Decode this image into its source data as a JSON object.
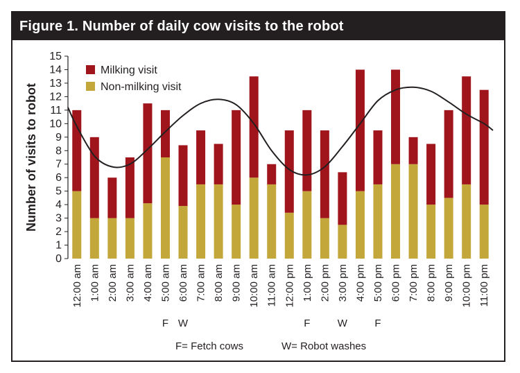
{
  "chart_data": {
    "type": "bar",
    "stacked": true,
    "title": "Figure 1. Number of daily cow visits to the robot",
    "ylabel": "Number of visits to robot",
    "ylim": [
      0,
      15
    ],
    "yticks": [
      0,
      1,
      2,
      3,
      4,
      5,
      6,
      7,
      8,
      9,
      10,
      11,
      12,
      13,
      14,
      15
    ],
    "grid": false,
    "legend_position": "top-left",
    "categories": [
      "12:00 am",
      "1:00 am",
      "2:00 am",
      "3:00 am",
      "4:00 am",
      "5:00 am",
      "6:00 am",
      "7:00 am",
      "8:00 am",
      "9:00 am",
      "10:00 am",
      "11:00 am",
      "12:00 pm",
      "1:00 pm",
      "2:00 pm",
      "3:00 pm",
      "4:00 pm",
      "5:00 pm",
      "6:00 pm",
      "7:00 pm",
      "8:00 pm",
      "9:00 pm",
      "10:00 pm",
      "11:00 pm"
    ],
    "series": [
      {
        "name": "Non-milking visit",
        "color": "#c4a73a",
        "values": [
          5,
          3,
          3,
          3,
          4.1,
          7.5,
          3.9,
          5.5,
          5.5,
          4,
          6,
          5.5,
          3.4,
          5,
          3,
          2.5,
          5,
          5.5,
          7,
          7,
          4,
          4.5,
          5.5,
          4
        ]
      },
      {
        "name": "Milking visit",
        "color": "#a0151c",
        "values": [
          6,
          6,
          3,
          4.5,
          7.4,
          3.5,
          4.5,
          4,
          3,
          7,
          7.5,
          1.5,
          6.1,
          6,
          6.5,
          3.9,
          9,
          4,
          7,
          2,
          4.5,
          6.5,
          8,
          8.5
        ]
      }
    ],
    "trend_line": {
      "color": "#231f20",
      "points": [
        [
          -0.5,
          11.2
        ],
        [
          0,
          9.8
        ],
        [
          1,
          7.6
        ],
        [
          2,
          6.8
        ],
        [
          3,
          7.0
        ],
        [
          4,
          8.1
        ],
        [
          5,
          9.4
        ],
        [
          6,
          10.6
        ],
        [
          7,
          11.5
        ],
        [
          8,
          11.8
        ],
        [
          9,
          11.4
        ],
        [
          10,
          10.0
        ],
        [
          11,
          8.0
        ],
        [
          12,
          6.6
        ],
        [
          13,
          6.2
        ],
        [
          14,
          6.8
        ],
        [
          15,
          8.3
        ],
        [
          16,
          10.0
        ],
        [
          17,
          11.7
        ],
        [
          18,
          12.5
        ],
        [
          19,
          12.7
        ],
        [
          20,
          12.4
        ],
        [
          21,
          11.6
        ],
        [
          22,
          10.7
        ],
        [
          23,
          10.0
        ],
        [
          23.5,
          9.5
        ]
      ]
    },
    "event_markers": [
      {
        "category": "5:00 am",
        "label": "F"
      },
      {
        "category": "6:00 am",
        "label": "W"
      },
      {
        "category": "1:00 pm",
        "label": "F"
      },
      {
        "category": "3:00 pm",
        "label": "W"
      },
      {
        "category": "5:00 pm",
        "label": "F"
      }
    ],
    "notes": [
      "F= Fetch cows",
      "W= Robot washes"
    ]
  }
}
